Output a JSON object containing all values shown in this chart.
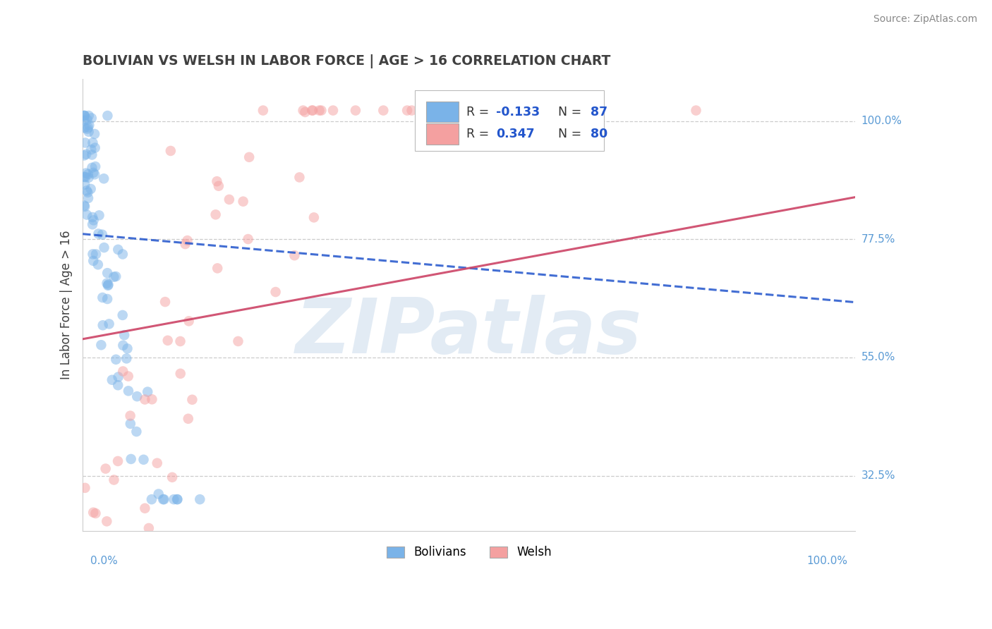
{
  "title": "BOLIVIAN VS WELSH IN LABOR FORCE | AGE > 16 CORRELATION CHART",
  "source_text": "Source: ZipAtlas.com",
  "ylabel_label": "In Labor Force | Age > 16",
  "blue_R": -0.133,
  "blue_N": 87,
  "pink_R": 0.347,
  "pink_N": 80,
  "blue_color": "#7ab3e8",
  "pink_color": "#f4a0a0",
  "blue_line_color": "#2255cc",
  "pink_line_color": "#cc4466",
  "bg_color": "#ffffff",
  "grid_color": "#cccccc",
  "watermark_color": "#c0d4e8",
  "watermark_text": "ZIPatlas",
  "title_color": "#404040",
  "axis_label_color": "#5b9bd5",
  "legend_R_color": "#2255cc",
  "xlim": [
    0.0,
    1.0
  ],
  "ylim": [
    0.22,
    1.08
  ],
  "ytick_vals": [
    0.325,
    0.55,
    0.775,
    1.0
  ],
  "ytick_labels": [
    "32.5%",
    "55.0%",
    "77.5%",
    "100.0%"
  ],
  "marker_size": 110,
  "marker_alpha": 0.5,
  "line_width": 2.2,
  "blue_trend": [
    0.785,
    0.655
  ],
  "pink_trend": [
    0.585,
    0.855
  ],
  "blue_seed": 42,
  "pink_seed": 99
}
